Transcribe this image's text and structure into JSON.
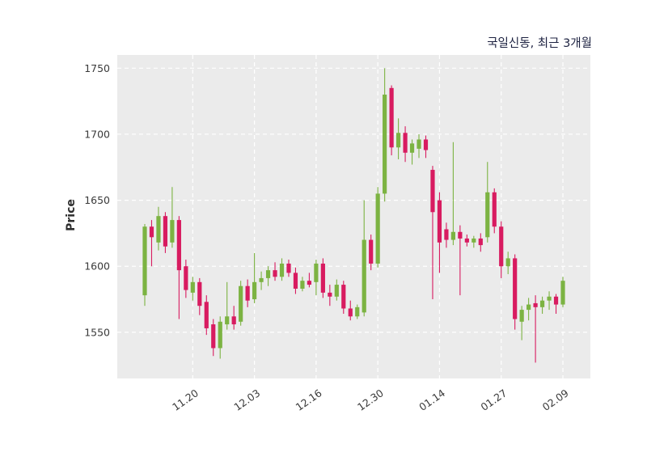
{
  "colors": {
    "up": "#7cb342",
    "down": "#d81b60",
    "plot_bg": "#ebebeb",
    "grid": "#ffffff",
    "title_text": "#1c2140",
    "axis_text": "#3a3a3a"
  },
  "chart_data": {
    "type": "candlestick",
    "title": "국일신동, 최근 3개월",
    "ylabel": "Price",
    "ylim": [
      1515,
      1760
    ],
    "yticks": [
      1550,
      1600,
      1650,
      1700,
      1750
    ],
    "xticks": [
      {
        "index": 7,
        "label": "11.20"
      },
      {
        "index": 16,
        "label": "12.03"
      },
      {
        "index": 25,
        "label": "12.16"
      },
      {
        "index": 34,
        "label": "12.30"
      },
      {
        "index": 43,
        "label": "01.14"
      },
      {
        "index": 52,
        "label": "01.27"
      },
      {
        "index": 61,
        "label": "02.09"
      }
    ],
    "series_format": [
      "open",
      "high",
      "low",
      "close"
    ],
    "candles": [
      [
        1578,
        1632,
        1570,
        1630
      ],
      [
        1630,
        1635,
        1600,
        1622
      ],
      [
        1618,
        1645,
        1612,
        1638
      ],
      [
        1638,
        1641,
        1610,
        1615
      ],
      [
        1618,
        1660,
        1614,
        1635
      ],
      [
        1635,
        1638,
        1560,
        1597
      ],
      [
        1600,
        1605,
        1576,
        1582
      ],
      [
        1580,
        1592,
        1574,
        1588
      ],
      [
        1588,
        1591,
        1563,
        1570
      ],
      [
        1573,
        1578,
        1548,
        1553
      ],
      [
        1556,
        1560,
        1532,
        1538
      ],
      [
        1538,
        1562,
        1530,
        1558
      ],
      [
        1556,
        1588,
        1552,
        1562
      ],
      [
        1562,
        1570,
        1552,
        1556
      ],
      [
        1558,
        1589,
        1555,
        1585
      ],
      [
        1585,
        1590,
        1569,
        1574
      ],
      [
        1575,
        1610,
        1572,
        1588
      ],
      [
        1588,
        1596,
        1582,
        1591
      ],
      [
        1591,
        1600,
        1585,
        1597
      ],
      [
        1597,
        1603,
        1589,
        1592
      ],
      [
        1592,
        1606,
        1589,
        1602
      ],
      [
        1602,
        1605,
        1592,
        1595
      ],
      [
        1595,
        1599,
        1579,
        1583
      ],
      [
        1583,
        1592,
        1581,
        1589
      ],
      [
        1589,
        1595,
        1584,
        1586
      ],
      [
        1588,
        1605,
        1578,
        1602
      ],
      [
        1602,
        1606,
        1576,
        1580
      ],
      [
        1580,
        1586,
        1570,
        1577
      ],
      [
        1577,
        1590,
        1574,
        1586
      ],
      [
        1586,
        1589,
        1564,
        1568
      ],
      [
        1568,
        1574,
        1559,
        1562
      ],
      [
        1562,
        1571,
        1560,
        1569
      ],
      [
        1565,
        1650,
        1562,
        1620
      ],
      [
        1620,
        1624,
        1597,
        1602
      ],
      [
        1602,
        1660,
        1599,
        1655
      ],
      [
        1655,
        1750,
        1649,
        1730
      ],
      [
        1735,
        1737,
        1684,
        1690
      ],
      [
        1690,
        1712,
        1681,
        1701
      ],
      [
        1701,
        1706,
        1679,
        1686
      ],
      [
        1686,
        1696,
        1677,
        1693
      ],
      [
        1689,
        1700,
        1682,
        1696
      ],
      [
        1696,
        1699,
        1682,
        1688
      ],
      [
        1673,
        1676,
        1575,
        1641
      ],
      [
        1650,
        1656,
        1595,
        1618
      ],
      [
        1628,
        1633,
        1614,
        1620
      ],
      [
        1620,
        1694,
        1616,
        1626
      ],
      [
        1626,
        1631,
        1578,
        1621
      ],
      [
        1621,
        1624,
        1615,
        1618
      ],
      [
        1618,
        1623,
        1614,
        1621
      ],
      [
        1621,
        1625,
        1611,
        1616
      ],
      [
        1622,
        1679,
        1618,
        1656
      ],
      [
        1656,
        1659,
        1625,
        1630
      ],
      [
        1630,
        1634,
        1591,
        1600
      ],
      [
        1600,
        1611,
        1594,
        1606
      ],
      [
        1606,
        1609,
        1552,
        1560
      ],
      [
        1558,
        1570,
        1544,
        1567
      ],
      [
        1567,
        1576,
        1559,
        1571
      ],
      [
        1572,
        1578,
        1527,
        1569
      ],
      [
        1569,
        1577,
        1564,
        1574
      ],
      [
        1574,
        1581,
        1567,
        1577
      ],
      [
        1577,
        1579,
        1564,
        1571
      ],
      [
        1571,
        1592,
        1569,
        1589
      ]
    ]
  }
}
